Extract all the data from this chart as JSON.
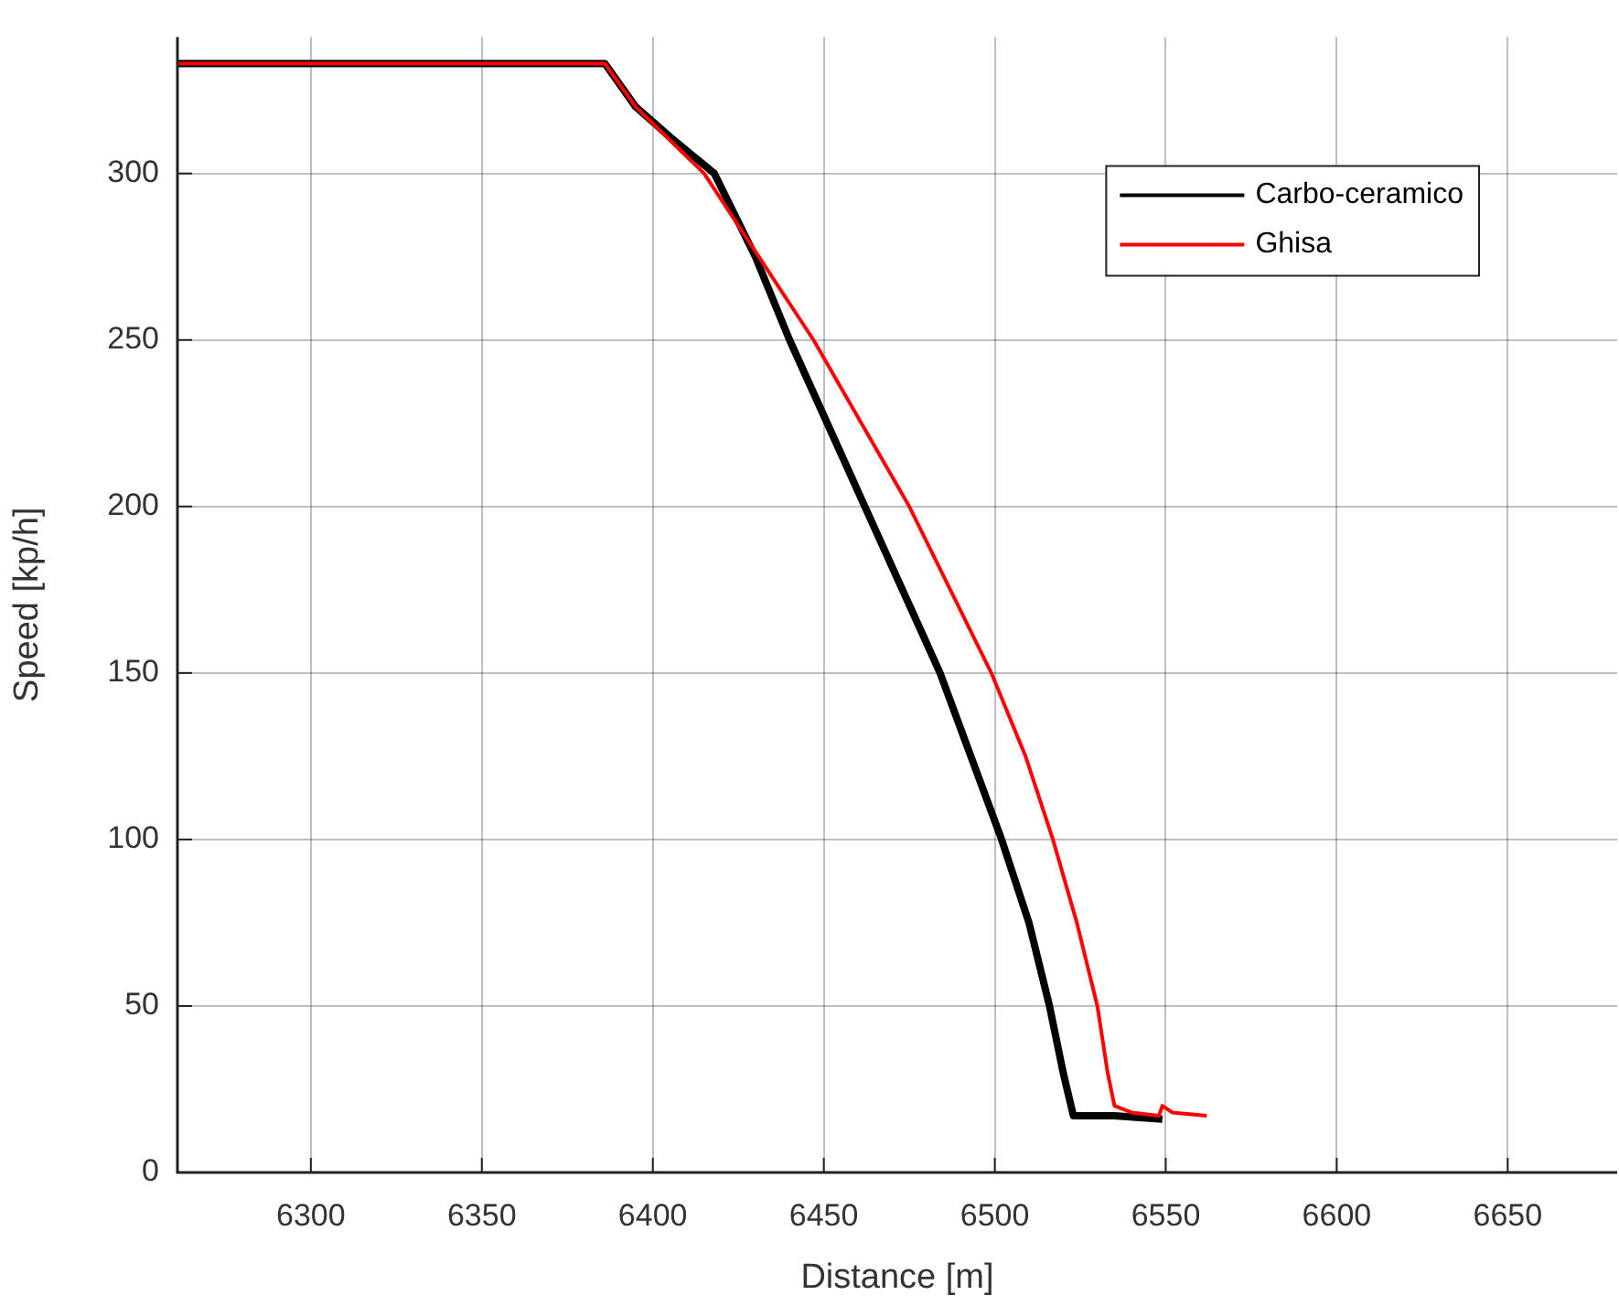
{
  "chart_data": {
    "type": "line",
    "xlabel": "Distance [m]",
    "ylabel": "Speed [kp/h]",
    "xlim": [
      6261,
      6682
    ],
    "xticks": [
      6300,
      6350,
      6400,
      6450,
      6500,
      6550,
      6600,
      6650
    ],
    "ylim": [
      0,
      341
    ],
    "yticks": [
      0,
      50,
      100,
      150,
      200,
      250,
      300
    ],
    "grid": true,
    "legend": "top right",
    "marker": "none",
    "line_style": "solid",
    "series": [
      {
        "name": "Carbo-ceramico",
        "color": "#000000",
        "x": [
          6261,
          6386,
          6395,
          6405,
          6418,
          6430,
          6440,
          6451,
          6462,
          6473,
          6484,
          6493,
          6502,
          6510,
          6516,
          6520,
          6523,
          6535,
          6549
        ],
        "values": [
          333,
          333,
          320,
          311,
          300,
          275,
          250,
          225,
          200,
          175,
          150,
          125,
          100,
          75,
          50,
          30,
          17,
          17,
          16
        ]
      },
      {
        "name": "Ghisa",
        "color": "#ff0000",
        "x": [
          6261,
          6386,
          6395,
          6403,
          6415,
          6431,
          6447,
          6461,
          6475,
          6487,
          6499,
          6509,
          6517,
          6524,
          6530,
          6533,
          6535,
          6540,
          6548,
          6549,
          6552,
          6562
        ],
        "values": [
          333,
          333,
          320,
          312,
          300,
          275,
          250,
          225,
          200,
          175,
          150,
          125,
          100,
          75,
          50,
          30,
          20,
          18,
          17,
          20,
          18,
          17
        ]
      }
    ]
  }
}
